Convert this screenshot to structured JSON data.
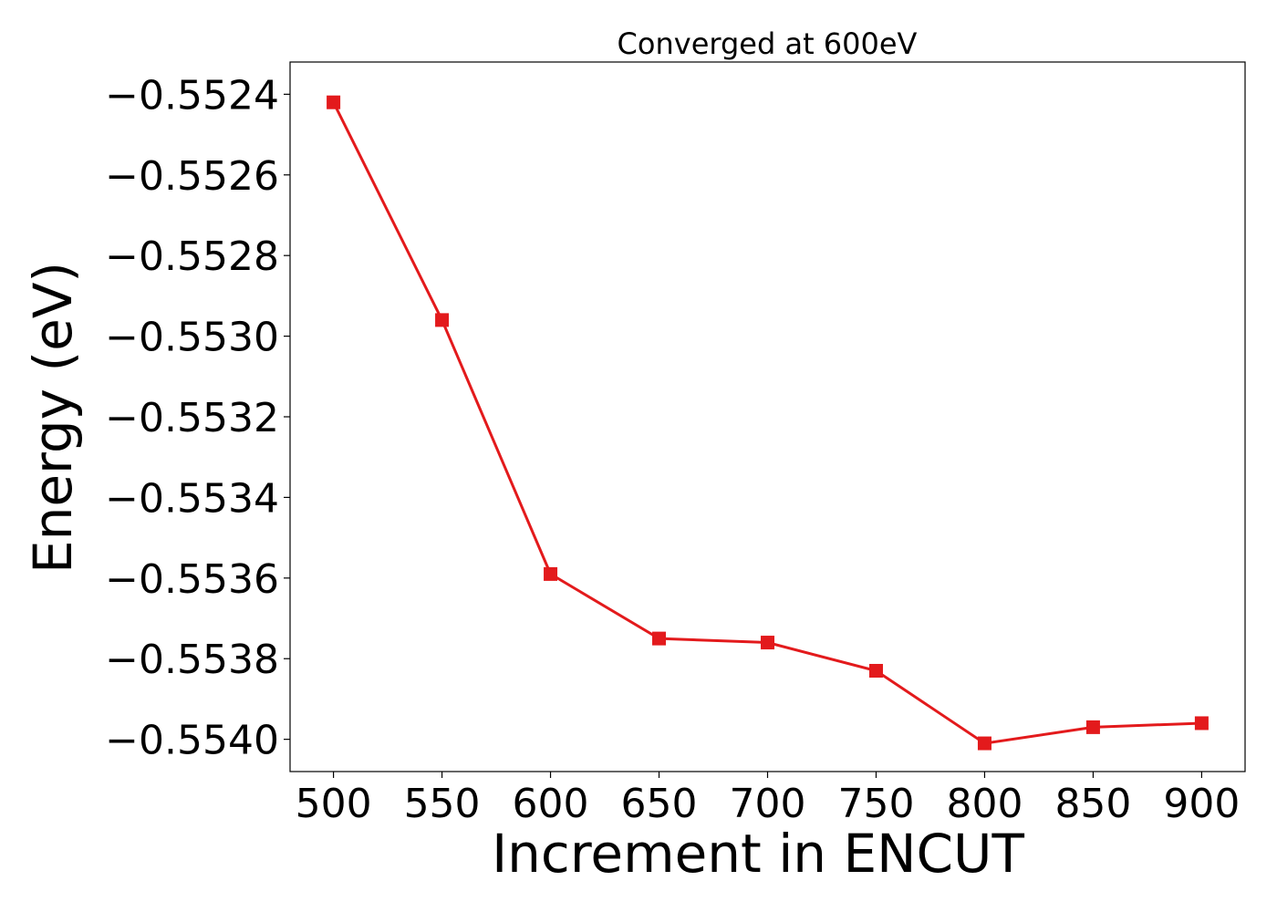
{
  "chart_data": {
    "type": "line",
    "title": "Converged at 600eV",
    "xlabel": "Increment in ENCUT",
    "ylabel": "Energy (eV)",
    "xlim": [
      480,
      920
    ],
    "ylim": [
      -0.55408,
      -0.55232
    ],
    "x_ticks": [
      500,
      550,
      600,
      650,
      700,
      750,
      800,
      850,
      900
    ],
    "x_tick_labels": [
      "500",
      "550",
      "600",
      "650",
      "700",
      "750",
      "800",
      "850",
      "900"
    ],
    "y_ticks": [
      -0.5524,
      -0.5526,
      -0.5528,
      -0.553,
      -0.5532,
      -0.5534,
      -0.5536,
      -0.5538,
      -0.554
    ],
    "y_tick_labels": [
      "−0.5524",
      "−0.5526",
      "−0.5528",
      "−0.5530",
      "−0.5532",
      "−0.5534",
      "−0.5536",
      "−0.5538",
      "−0.5540"
    ],
    "grid": false,
    "series": [
      {
        "color": "#e31a1c",
        "marker": "square",
        "x": [
          500,
          550,
          600,
          650,
          700,
          750,
          800,
          850,
          900
        ],
        "y": [
          -0.55242,
          -0.55296,
          -0.55359,
          -0.55375,
          -0.55376,
          -0.55383,
          -0.55401,
          -0.55397,
          -0.55396
        ]
      }
    ]
  }
}
